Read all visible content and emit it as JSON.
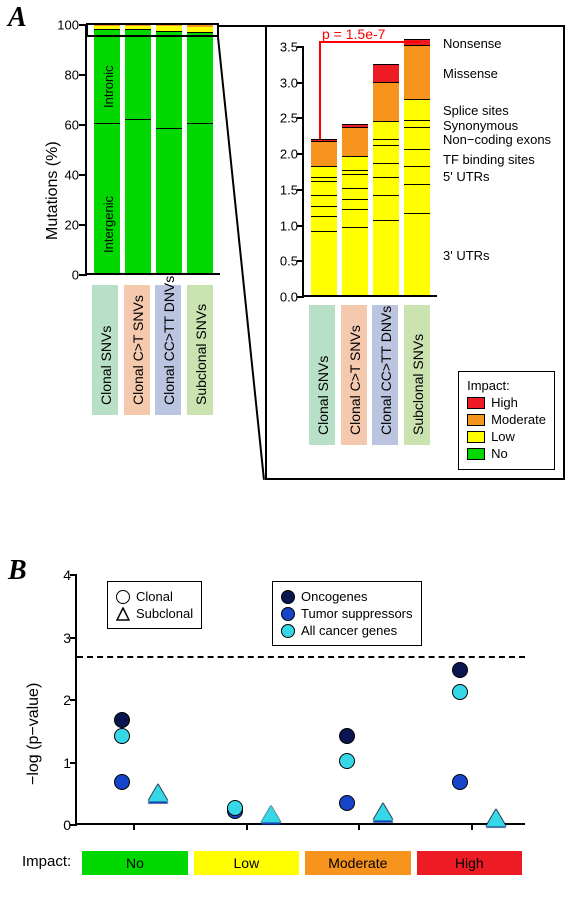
{
  "panelA_label": "A",
  "panelB_label": "B",
  "colors": {
    "high": "#ed1c24",
    "moderate": "#f7941e",
    "low": "#ffff00",
    "no": "#00d800",
    "catbg": [
      "#b8e0c7",
      "#f5c9ae",
      "#bcc5df",
      "#cbe3b1"
    ],
    "oncogenes": "#0a164f",
    "tumorsupp": "#1745c9",
    "allcancer": "#36d8e8"
  },
  "A_left": {
    "ylabel": "Mutations (%)",
    "ymax": 100,
    "yticks": [
      0,
      20,
      40,
      60,
      80,
      100
    ],
    "categories": [
      "Clonal SNVs",
      "Clonal C>T SNVs",
      "Clonal CC>TT DNVs",
      "Subclonal SNVs"
    ],
    "bars": [
      {
        "no_intergenic": 60,
        "no_intronic": 37.8,
        "low": 1.2,
        "moderate": 0.9,
        "high": 0.1
      },
      {
        "no_intergenic": 61.5,
        "no_intronic": 36,
        "low": 1.4,
        "moderate": 1.0,
        "high": 0.1
      },
      {
        "no_intergenic": 58,
        "no_intronic": 38.7,
        "low": 2.0,
        "moderate": 1.1,
        "high": 0.2
      },
      {
        "no_intergenic": 60,
        "no_intronic": 36.4,
        "low": 2.2,
        "moderate": 1.2,
        "high": 0.2
      }
    ],
    "sideLabels": {
      "intergenic": "Intergenic",
      "intronic": "Intronic"
    }
  },
  "A_right": {
    "ymax": 3.5,
    "yticks": [
      0.0,
      0.5,
      1.0,
      1.5,
      2.0,
      2.5,
      3.0,
      3.5
    ],
    "pvalue": "p = 1.5e-7",
    "bars": [
      {
        "segs": [
          0.9,
          0.2,
          0.15,
          0.15,
          0.2,
          0.05,
          0.15,
          0.35,
          0.03
        ]
      },
      {
        "segs": [
          0.95,
          0.25,
          0.15,
          0.15,
          0.2,
          0.05,
          0.2,
          0.4,
          0.05
        ]
      },
      {
        "segs": [
          1.05,
          0.35,
          0.25,
          0.2,
          0.25,
          0.08,
          0.25,
          0.55,
          0.25
        ]
      },
      {
        "segs": [
          1.15,
          0.4,
          0.25,
          0.25,
          0.3,
          0.1,
          0.3,
          0.75,
          0.08
        ]
      }
    ],
    "segColorsIdx": [
      "low",
      "low",
      "low",
      "low",
      "low",
      "low",
      "low",
      "moderate",
      "high"
    ],
    "annotations": [
      "3' UTRs",
      "",
      "5' UTRs",
      "TF binding sites",
      "Non−coding exons",
      "Synonymous",
      "Splice sites",
      "Missense",
      "Nonsense"
    ],
    "legend_title": "Impact:",
    "legend": [
      {
        "label": "High",
        "c": "high"
      },
      {
        "label": "Moderate",
        "c": "moderate"
      },
      {
        "label": "Low",
        "c": "low"
      },
      {
        "label": "No",
        "c": "no"
      }
    ]
  },
  "B": {
    "ylabel": "−log (p−value)",
    "ymax": 4,
    "yticks": [
      0,
      1,
      2,
      3,
      4
    ],
    "dash_y": 2.7,
    "xcats": [
      "No",
      "Low",
      "Moderate",
      "High"
    ],
    "xcolors": [
      "no",
      "low",
      "moderate",
      "high"
    ],
    "impactLabel": "Impact:",
    "legend_shape": [
      {
        "shape": "circle",
        "label": "Clonal"
      },
      {
        "shape": "triangle",
        "label": "Subclonal"
      }
    ],
    "legend_color": [
      {
        "c": "oncogenes",
        "label": "Oncogenes"
      },
      {
        "c": "tumorsupp",
        "label": "Tumor suppressors"
      },
      {
        "c": "allcancer",
        "label": "All cancer genes"
      }
    ],
    "points": [
      {
        "x": 0,
        "off": -0.1,
        "y": 1.65,
        "shape": "circle",
        "c": "oncogenes"
      },
      {
        "x": 0,
        "off": -0.1,
        "y": 0.65,
        "shape": "circle",
        "c": "tumorsupp"
      },
      {
        "x": 0,
        "off": -0.1,
        "y": 1.4,
        "shape": "circle",
        "c": "allcancer"
      },
      {
        "x": 0,
        "off": 0.22,
        "y": 0.5,
        "shape": "triangle",
        "c": "oncogenes"
      },
      {
        "x": 0,
        "off": 0.22,
        "y": 0.45,
        "shape": "triangle",
        "c": "tumorsupp"
      },
      {
        "x": 0,
        "off": 0.22,
        "y": 0.48,
        "shape": "triangle",
        "c": "allcancer"
      },
      {
        "x": 1,
        "off": -0.1,
        "y": 0.22,
        "shape": "circle",
        "c": "oncogenes"
      },
      {
        "x": 1,
        "off": -0.1,
        "y": 0.2,
        "shape": "circle",
        "c": "tumorsupp"
      },
      {
        "x": 1,
        "off": -0.1,
        "y": 0.24,
        "shape": "circle",
        "c": "allcancer"
      },
      {
        "x": 1,
        "off": 0.22,
        "y": 0.15,
        "shape": "triangle",
        "c": "oncogenes"
      },
      {
        "x": 1,
        "off": 0.22,
        "y": 0.12,
        "shape": "triangle",
        "c": "tumorsupp"
      },
      {
        "x": 1,
        "off": 0.22,
        "y": 0.14,
        "shape": "triangle",
        "c": "allcancer"
      },
      {
        "x": 2,
        "off": -0.1,
        "y": 1.4,
        "shape": "circle",
        "c": "oncogenes"
      },
      {
        "x": 2,
        "off": -0.1,
        "y": 0.32,
        "shape": "circle",
        "c": "tumorsupp"
      },
      {
        "x": 2,
        "off": -0.1,
        "y": 1.0,
        "shape": "circle",
        "c": "allcancer"
      },
      {
        "x": 2,
        "off": 0.22,
        "y": 0.2,
        "shape": "triangle",
        "c": "oncogenes"
      },
      {
        "x": 2,
        "off": 0.22,
        "y": 0.14,
        "shape": "triangle",
        "c": "tumorsupp"
      },
      {
        "x": 2,
        "off": 0.22,
        "y": 0.17,
        "shape": "triangle",
        "c": "allcancer"
      },
      {
        "x": 3,
        "off": -0.1,
        "y": 2.45,
        "shape": "circle",
        "c": "oncogenes"
      },
      {
        "x": 3,
        "off": -0.1,
        "y": 0.65,
        "shape": "circle",
        "c": "tumorsupp"
      },
      {
        "x": 3,
        "off": -0.1,
        "y": 2.1,
        "shape": "circle",
        "c": "allcancer"
      },
      {
        "x": 3,
        "off": 0.22,
        "y": 0.1,
        "shape": "triangle",
        "c": "oncogenes"
      },
      {
        "x": 3,
        "off": 0.22,
        "y": 0.06,
        "shape": "triangle",
        "c": "tumorsupp"
      },
      {
        "x": 3,
        "off": 0.22,
        "y": 0.08,
        "shape": "triangle",
        "c": "allcancer"
      }
    ]
  }
}
